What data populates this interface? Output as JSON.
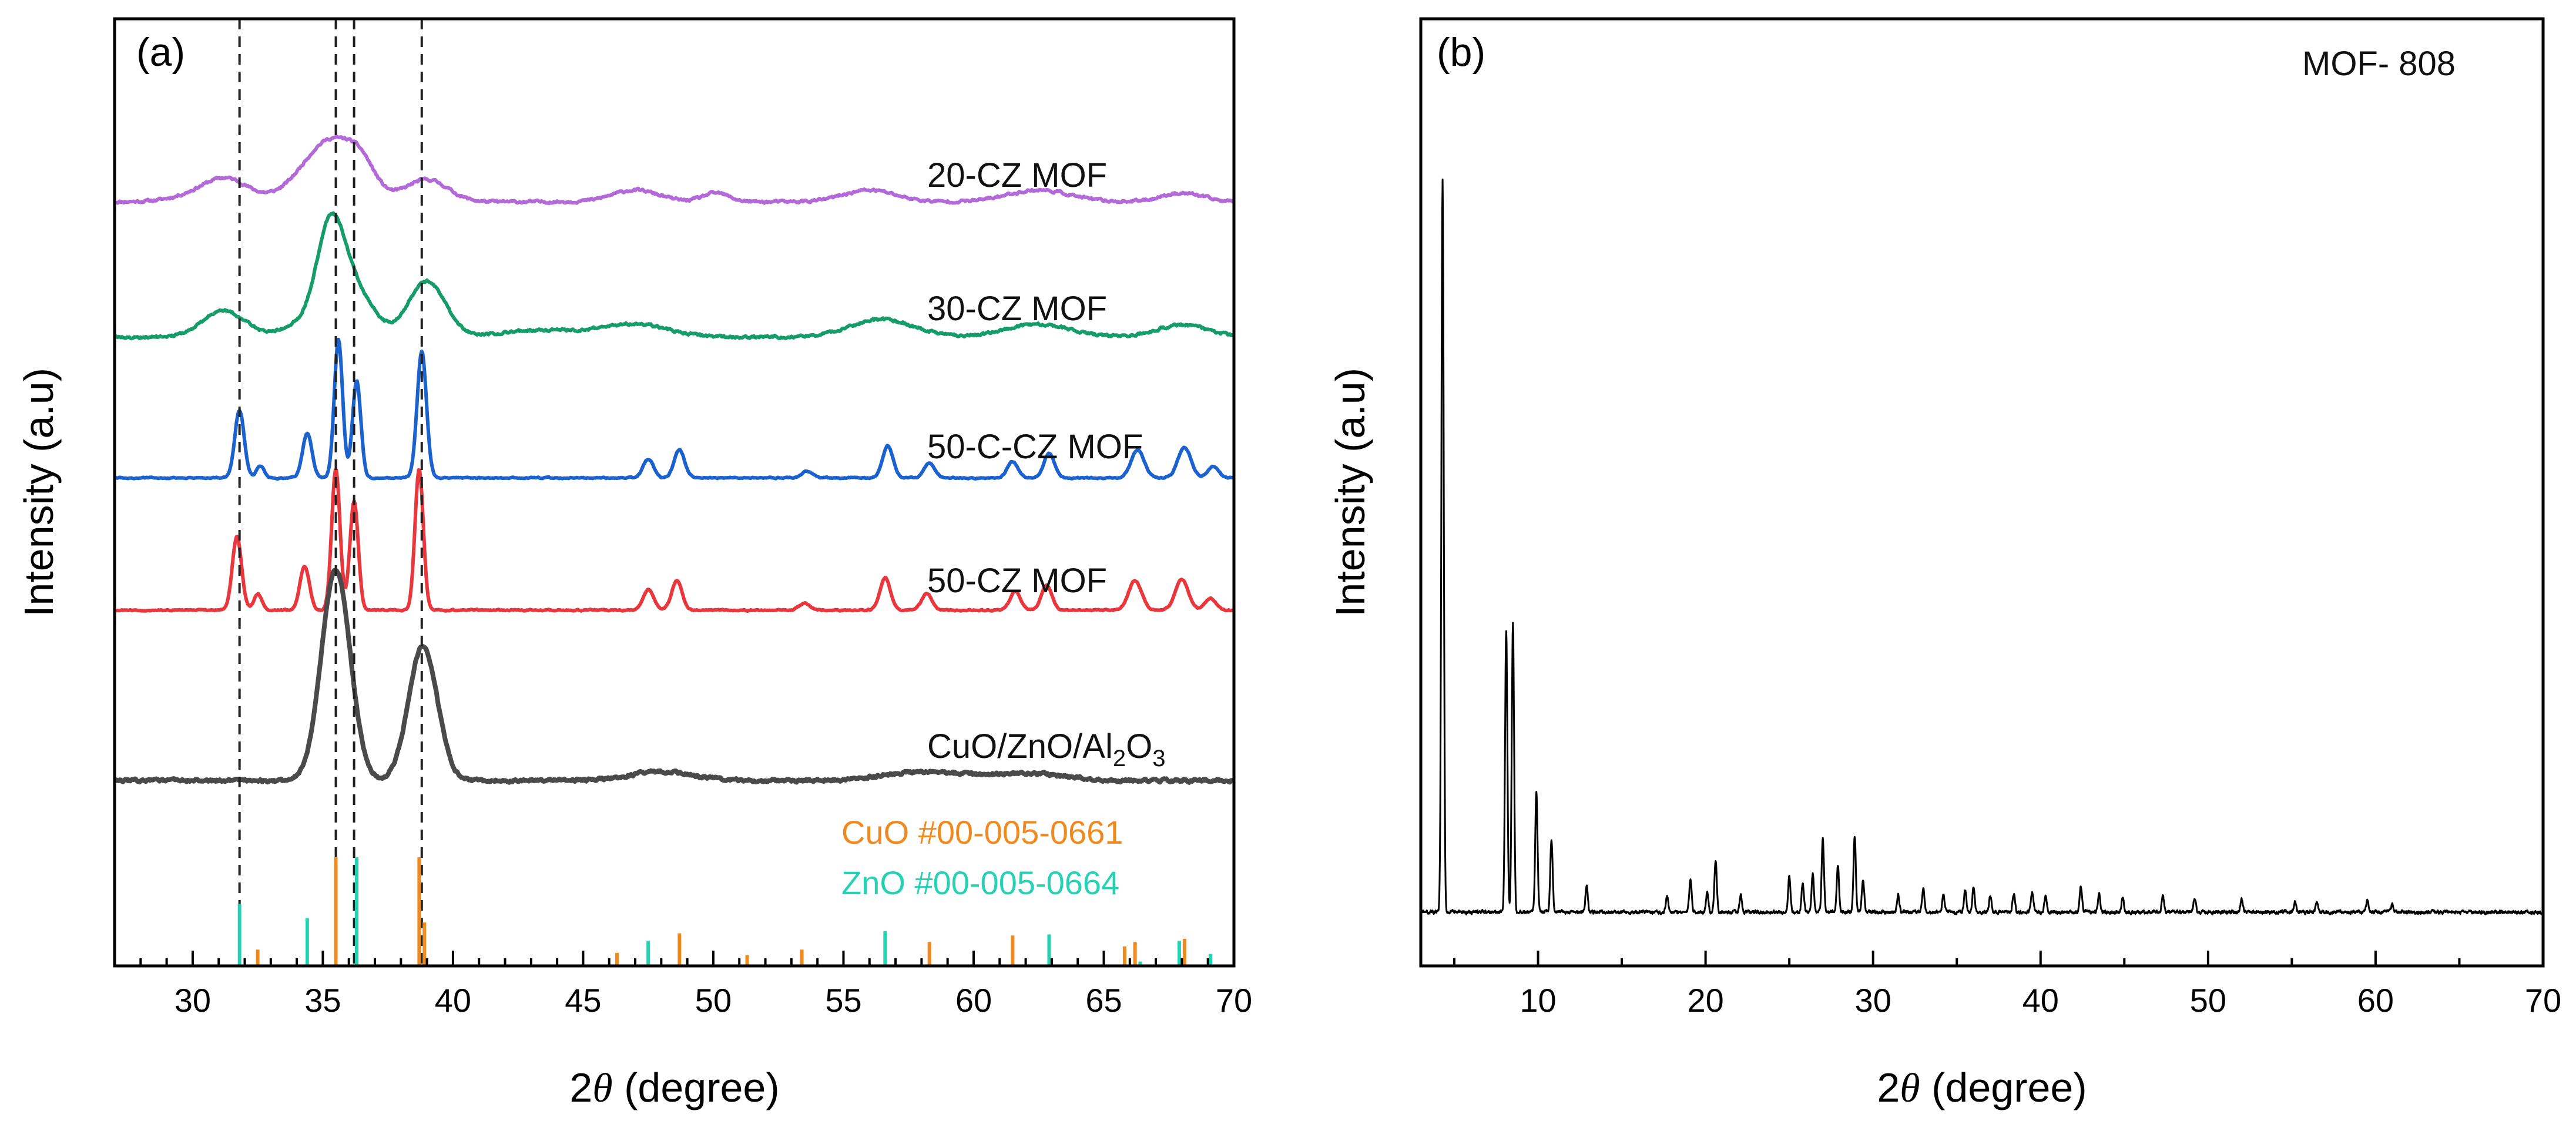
{
  "figure": {
    "panel_a_label": "(a)",
    "panel_b_label": "(b)",
    "panel_b_title": "MOF- 808",
    "y_axis_title": "Intensity (a.u)",
    "x_axis_title_prefix": "2",
    "x_axis_title_symbol": "θ",
    "x_axis_title_suffix": " (degree)"
  },
  "chart_data": [
    {
      "panel": "a",
      "type": "line",
      "title": "(a)",
      "xlabel": "2θ (degree)",
      "ylabel": "Intensity (a.u)",
      "xlim": [
        27,
        70
      ],
      "xticks": [
        30,
        35,
        40,
        45,
        50,
        55,
        60,
        65,
        70
      ],
      "yticks": "none",
      "reference_dashed_lines_2theta": [
        31.8,
        35.5,
        36.2,
        38.8
      ],
      "series": [
        {
          "name": "20-CZ MOF",
          "color": "#b36ad8",
          "width": 6,
          "baseline": 0.915,
          "peaks": [
            [
              30.0,
              1.0,
              0.05
            ],
            [
              30.9,
              1.0,
              0.15
            ],
            [
              31.4,
              0.8,
              0.25
            ],
            [
              34.5,
              1.0,
              0.25
            ],
            [
              35.5,
              1.0,
              0.9
            ],
            [
              36.5,
              0.5,
              0.3
            ],
            [
              39.0,
              0.8,
              0.38
            ],
            [
              47.0,
              0.9,
              0.2
            ],
            [
              50.1,
              0.5,
              0.15
            ],
            [
              56.0,
              1.0,
              0.2
            ],
            [
              62.5,
              1.2,
              0.2
            ],
            [
              68.0,
              0.8,
              0.15
            ]
          ],
          "noise": 0.04
        },
        {
          "name": "30-CZ MOF",
          "color": "#169c69",
          "width": 6,
          "baseline": 0.915,
          "peaks": [
            [
              31.2,
              0.8,
              0.45
            ],
            [
              34.0,
              0.7,
              0.18
            ],
            [
              35.3,
              0.55,
              1.8
            ],
            [
              36.3,
              0.7,
              0.7
            ],
            [
              39.0,
              0.7,
              0.95
            ],
            [
              43.5,
              1.5,
              0.12
            ],
            [
              47.0,
              1.2,
              0.22
            ],
            [
              56.5,
              1.2,
              0.3
            ],
            [
              62.5,
              1.2,
              0.22
            ],
            [
              68.0,
              1.0,
              0.2
            ]
          ],
          "noise": 0.04
        },
        {
          "name": "50-C-CZ MOF",
          "color": "#1b62cf",
          "width": 6,
          "baseline": 0.915,
          "peaks": [
            [
              31.8,
              0.18,
              1.15
            ],
            [
              32.6,
              0.15,
              0.2
            ],
            [
              34.4,
              0.18,
              0.75
            ],
            [
              35.6,
              0.16,
              2.35
            ],
            [
              36.3,
              0.16,
              1.65
            ],
            [
              38.8,
              0.18,
              2.15
            ],
            [
              47.5,
              0.2,
              0.32
            ],
            [
              48.7,
              0.2,
              0.48
            ],
            [
              53.6,
              0.2,
              0.12
            ],
            [
              56.7,
              0.2,
              0.55
            ],
            [
              58.3,
              0.2,
              0.25
            ],
            [
              61.5,
              0.2,
              0.28
            ],
            [
              62.9,
              0.2,
              0.42
            ],
            [
              66.3,
              0.25,
              0.48
            ],
            [
              68.1,
              0.25,
              0.52
            ],
            [
              69.2,
              0.2,
              0.2
            ]
          ],
          "noise": 0.02
        },
        {
          "name": "50-CZ MOF",
          "color": "#e8383e",
          "width": 6,
          "baseline": 0.915,
          "peaks": [
            [
              31.7,
              0.18,
              1.25
            ],
            [
              32.5,
              0.15,
              0.28
            ],
            [
              34.3,
              0.18,
              0.75
            ],
            [
              35.5,
              0.16,
              2.4
            ],
            [
              36.2,
              0.16,
              1.85
            ],
            [
              38.7,
              0.16,
              2.4
            ],
            [
              47.5,
              0.2,
              0.35
            ],
            [
              48.6,
              0.2,
              0.5
            ],
            [
              53.5,
              0.2,
              0.12
            ],
            [
              56.6,
              0.2,
              0.55
            ],
            [
              58.2,
              0.2,
              0.28
            ],
            [
              61.6,
              0.2,
              0.32
            ],
            [
              62.8,
              0.2,
              0.42
            ],
            [
              66.2,
              0.25,
              0.5
            ],
            [
              68.0,
              0.25,
              0.52
            ],
            [
              69.1,
              0.2,
              0.2
            ]
          ],
          "noise": 0.02
        },
        {
          "name": "CuO/ZnO/Al2O3",
          "label_html_parts": [
            "CuO/ZnO/Al",
            "2",
            "O",
            "3"
          ],
          "color": "#4a4a4a",
          "width": 8,
          "baseline": 0.915,
          "peaks": [
            [
              35.5,
              0.55,
              3.6
            ],
            [
              38.85,
              0.55,
              2.3
            ],
            [
              48.0,
              1.2,
              0.15
            ],
            [
              58.0,
              1.5,
              0.15
            ],
            [
              62.0,
              1.5,
              0.12
            ]
          ],
          "noise": 0.045
        }
      ],
      "reference_patterns": [
        {
          "name": "CuO #00-005-0661",
          "color": "#f08a1e",
          "sticks": [
            [
              35.5,
              1.0
            ],
            [
              38.7,
              1.0
            ],
            [
              32.5,
              0.15
            ],
            [
              38.9,
              0.4
            ],
            [
              46.3,
              0.12
            ],
            [
              48.7,
              0.3
            ],
            [
              51.3,
              0.1
            ],
            [
              53.4,
              0.15
            ],
            [
              58.3,
              0.22
            ],
            [
              61.5,
              0.28
            ],
            [
              65.8,
              0.18
            ],
            [
              66.2,
              0.22
            ],
            [
              68.1,
              0.25
            ]
          ]
        },
        {
          "name": "ZnO #00-005-0664",
          "color": "#26d1b4",
          "sticks": [
            [
              31.8,
              0.57
            ],
            [
              34.4,
              0.44
            ],
            [
              36.3,
              1.0
            ],
            [
              47.5,
              0.23
            ],
            [
              56.6,
              0.32
            ],
            [
              62.9,
              0.29
            ],
            [
              66.4,
              0.04
            ],
            [
              67.9,
              0.23
            ],
            [
              69.1,
              0.11
            ]
          ]
        }
      ]
    },
    {
      "panel": "b",
      "type": "line",
      "title": "MOF- 808",
      "xlabel": "2θ (degree)",
      "ylabel": "Intensity (a.u)",
      "xlim": [
        3,
        70
      ],
      "xticks": [
        10,
        20,
        30,
        40,
        50,
        60,
        70
      ],
      "yticks": "none",
      "series": [
        {
          "name": "MOF- 808",
          "color": "#000000",
          "width": 3,
          "baseline": 0.19,
          "peaks": [
            [
              4.3,
              0.07,
              8.6
            ],
            [
              8.1,
              0.07,
              3.3
            ],
            [
              8.5,
              0.07,
              3.4
            ],
            [
              9.9,
              0.07,
              1.4
            ],
            [
              10.8,
              0.07,
              0.85
            ],
            [
              12.9,
              0.07,
              0.32
            ],
            [
              17.7,
              0.07,
              0.2
            ],
            [
              19.1,
              0.07,
              0.4
            ],
            [
              20.1,
              0.07,
              0.25
            ],
            [
              20.6,
              0.07,
              0.6
            ],
            [
              22.1,
              0.07,
              0.2
            ],
            [
              25.0,
              0.07,
              0.42
            ],
            [
              25.8,
              0.07,
              0.35
            ],
            [
              26.4,
              0.07,
              0.45
            ],
            [
              27.0,
              0.07,
              0.85
            ],
            [
              27.9,
              0.07,
              0.55
            ],
            [
              28.9,
              0.07,
              0.9
            ],
            [
              29.4,
              0.07,
              0.4
            ],
            [
              31.5,
              0.07,
              0.2
            ],
            [
              33.0,
              0.07,
              0.28
            ],
            [
              34.2,
              0.07,
              0.2
            ],
            [
              35.5,
              0.07,
              0.25
            ],
            [
              36.0,
              0.07,
              0.3
            ],
            [
              37.0,
              0.07,
              0.2
            ],
            [
              38.4,
              0.07,
              0.22
            ],
            [
              39.5,
              0.07,
              0.25
            ],
            [
              40.3,
              0.07,
              0.2
            ],
            [
              42.4,
              0.07,
              0.32
            ],
            [
              43.5,
              0.07,
              0.2
            ],
            [
              44.9,
              0.07,
              0.18
            ],
            [
              47.3,
              0.07,
              0.18
            ],
            [
              49.2,
              0.07,
              0.15
            ],
            [
              52.0,
              0.07,
              0.15
            ],
            [
              55.2,
              0.07,
              0.12
            ],
            [
              56.5,
              0.07,
              0.12
            ],
            [
              59.5,
              0.07,
              0.15
            ],
            [
              61.0,
              0.07,
              0.1
            ]
          ],
          "noise": 0.035
        }
      ]
    }
  ]
}
